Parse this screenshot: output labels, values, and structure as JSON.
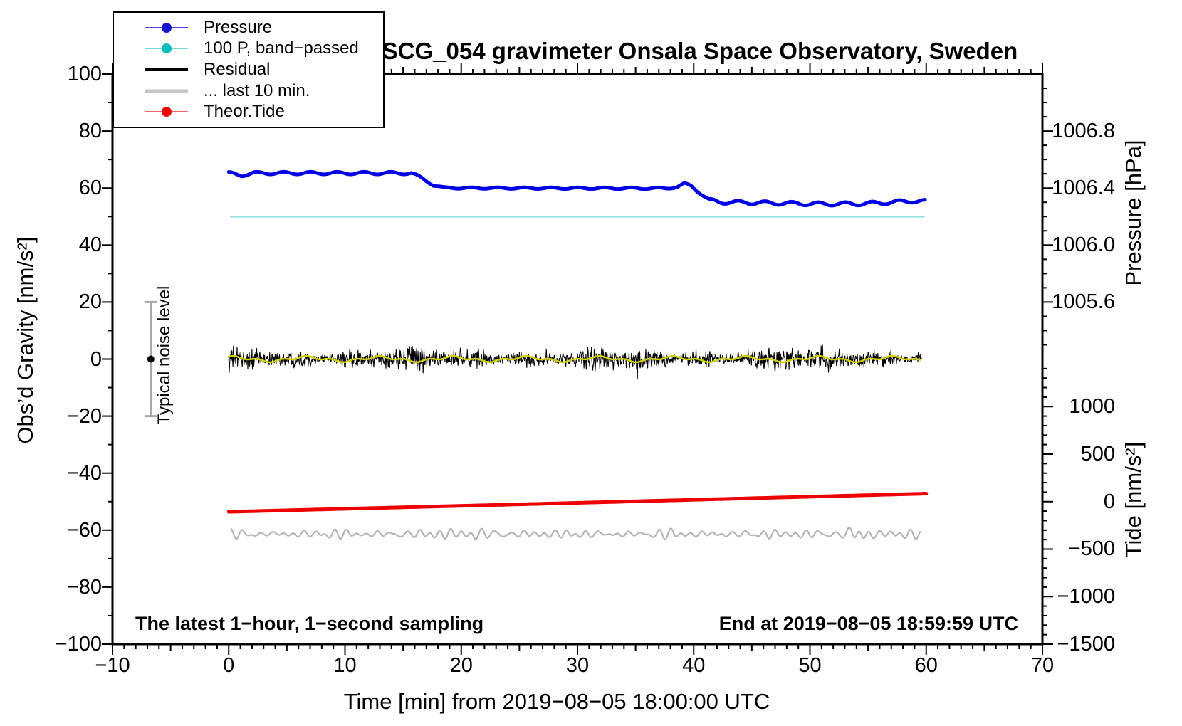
{
  "title": "SCG_054 gravimeter Onsala Space Observatory, Sweden",
  "annotations": {
    "sampling_note": "The latest 1−hour, 1−second sampling",
    "end_note": "End at 2019−08−05 18:59:59 UTC",
    "noise_label": "Typical noise level"
  },
  "colors": {
    "pressure_blue": "#0000e6",
    "bandpassed_cyan": "#8fdfe0",
    "residual_black": "#000000",
    "last10min_gray": "#b4b4b4",
    "smoothed_yellow": "#d0d000",
    "tide_red": "#ef0000",
    "noisebar_gray": "#a8a8a8",
    "frame_black": "#000000"
  },
  "legend": {
    "items": [
      {
        "label": "Pressure",
        "line_color": "#4a4ae0",
        "line_width": 2.5,
        "marker_color": "#1414cc"
      },
      {
        "label": "100 P, band−passed",
        "line_color": "#79d8d8",
        "line_width": 2.5,
        "marker_color": "#00bdbd"
      },
      {
        "label": "Residual",
        "line_color": "#000000",
        "line_width": 4.5,
        "marker_color": null
      },
      {
        "label": "... last 10 min.",
        "line_color": "#c6c6c6",
        "line_width": 5,
        "marker_color": null
      },
      {
        "label": "Theor.Tide",
        "line_color": "#f26666",
        "line_width": 2.5,
        "marker_color": "#ee0000"
      }
    ]
  },
  "axes": {
    "x": {
      "label": "Time [min] from 2019−08−05 18:00:00 UTC",
      "range": [
        -10,
        70
      ],
      "major_values": [
        -10,
        0,
        10,
        20,
        30,
        40,
        50,
        60,
        70
      ],
      "major_labels": [
        "−10",
        "0",
        "10",
        "20",
        "30",
        "40",
        "50",
        "60",
        "70"
      ],
      "medium_step": 5,
      "minor_step": 1
    },
    "y_left": {
      "label": "Obs’d Gravity [nm/s²]",
      "range": [
        -100,
        100
      ],
      "major_values": [
        100,
        80,
        60,
        40,
        20,
        0,
        -20,
        -40,
        -60,
        -80,
        -100
      ],
      "major_labels": [
        "100",
        "80",
        "60",
        "40",
        "20",
        "0",
        "−20",
        "−40",
        "−60",
        "−80",
        "−100"
      ],
      "minor_step": 10
    },
    "y_right_pressure": {
      "label": "Pressure [hPa]",
      "range": [
        1005.2,
        1007.2
      ],
      "major_values": [
        1006.8,
        1006.4,
        1006.0,
        1005.6
      ],
      "major_labels": [
        "1006.8",
        "1006.4",
        "1006.0",
        "1005.6"
      ],
      "minor_step": 0.1,
      "gravity_calibration": {
        "hPa_at_gravity0": 1005.2,
        "gravity_per_hPa": 50
      }
    },
    "y_right_tide": {
      "label": "Tide [nm/s²]",
      "range": [
        -1500,
        1400
      ],
      "major_values": [
        1000,
        500,
        0,
        -500,
        -1000,
        -1500
      ],
      "major_labels": [
        "1000",
        "500",
        "0",
        "−500",
        "−1000",
        "−1500"
      ],
      "minor_step": 100,
      "gravity_calibration": {
        "gravity_at_tide0": -50,
        "gravity_per_unit": 0.0333333
      }
    }
  },
  "noise_bar": {
    "time_min": -6.7,
    "center_gravity": 0,
    "half_range": 20,
    "cap_half_width": 9,
    "bar_color": "#a8a8a8",
    "dot_color": "#000000"
  },
  "chart_data": {
    "type": "line",
    "title": "SCG_054 gravimeter Onsala Space Observatory, Sweden",
    "xlabel": "Time [min] from 2019−08−05 18:00:00 UTC",
    "ylabel_left": "Obs’d Gravity [nm/s²]",
    "x_range": [
      -10,
      70
    ],
    "gravity_range": [
      -100,
      100
    ],
    "grid": false,
    "legend_position": "top-left",
    "series": [
      {
        "name": "Pressure",
        "axis": "pressure",
        "unit": "hPa",
        "color": "#0000e6",
        "width": 5,
        "keyframes": [
          [
            0,
            1006.505
          ],
          [
            1.1,
            1006.49
          ],
          [
            2.2,
            1006.505
          ],
          [
            15.7,
            1006.505
          ],
          [
            16.6,
            1006.47
          ],
          [
            17.6,
            1006.42
          ],
          [
            18.5,
            1006.402
          ],
          [
            20,
            1006.4
          ],
          [
            37.6,
            1006.398
          ],
          [
            38.6,
            1006.408
          ],
          [
            39.2,
            1006.428
          ],
          [
            39.8,
            1006.415
          ],
          [
            40.5,
            1006.37
          ],
          [
            41.3,
            1006.315
          ],
          [
            42.2,
            1006.302
          ],
          [
            46,
            1006.296
          ],
          [
            51,
            1006.288
          ],
          [
            54.5,
            1006.29
          ],
          [
            57,
            1006.3
          ],
          [
            58.8,
            1006.31
          ],
          [
            59.9,
            1006.306
          ]
        ],
        "wiggle": {
          "period_min": 2.3,
          "phase": 1.2,
          "amp_keyframes": [
            [
              0,
              0.009
            ],
            [
              15.5,
              0.009
            ],
            [
              17.5,
              0.005
            ],
            [
              38,
              0.006
            ],
            [
              42,
              0.012
            ],
            [
              60,
              0.012
            ]
          ]
        }
      },
      {
        "name": "100 P, band−passed",
        "axis": "gravity",
        "color": "#8fdfe0",
        "width": 2.5,
        "gravity_value": 50,
        "t_range": [
          0.2,
          59.8
        ]
      },
      {
        "name": "Residual",
        "axis": "gravity",
        "unit": "nm/s²",
        "color": "#000000",
        "width": 1.1,
        "mean": 0,
        "sigma": 1.45,
        "spike_probability": 0.015,
        "max_abs": 8.5,
        "seed": 1234,
        "t_range": [
          0,
          59.6
        ],
        "sample_step_min": 0.04
      },
      {
        "name": "Residual smoothed",
        "axis": "gravity",
        "color": "#d0d000",
        "width": 2.5,
        "components": [
          [
            6.3,
            0.7,
            1.2
          ],
          [
            2.1,
            0.4,
            0.4
          ]
        ],
        "t_range": [
          0,
          59.6
        ]
      },
      {
        "name": "... last 10 min.",
        "axis": "gravity",
        "color": "#b4b4b4",
        "width": 2.2,
        "offset_gravity": -61.4,
        "typical_amplitude": 2.2,
        "burst_time": 54.2,
        "burst_gain": 2.6,
        "t_range": [
          0.2,
          59.5
        ]
      },
      {
        "name": "Theor.Tide",
        "axis": "tide",
        "unit": "nm/s²",
        "color": "#ef0000",
        "width": 5,
        "keyframes": [
          [
            0,
            -107
          ],
          [
            30,
            -13
          ],
          [
            60,
            84
          ]
        ]
      }
    ]
  }
}
